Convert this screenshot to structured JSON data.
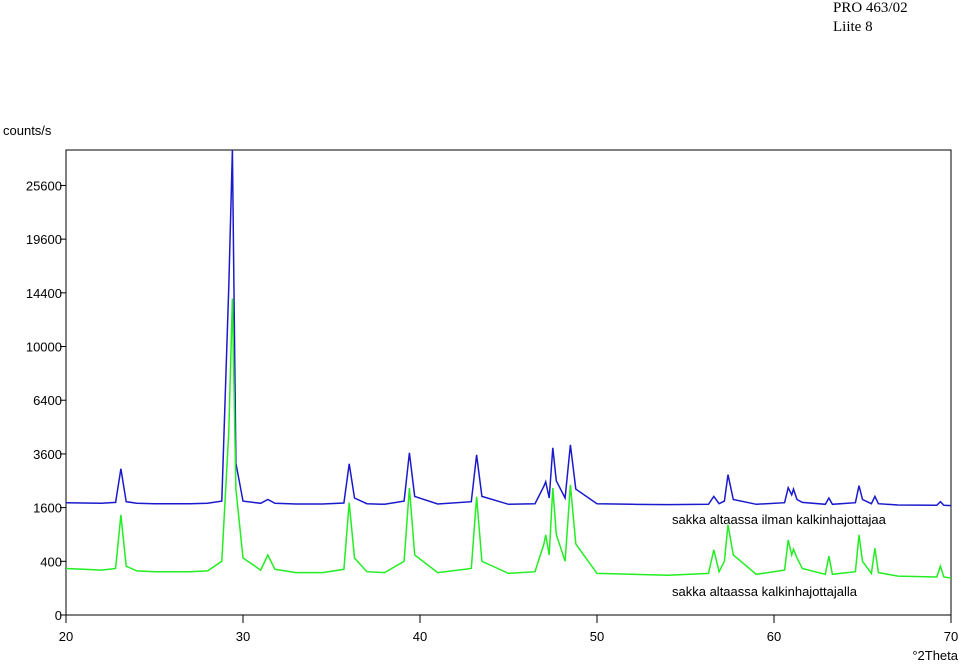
{
  "header": {
    "lines": [
      "PRO 463/02",
      "Liite 8"
    ]
  },
  "chart_data": {
    "type": "line",
    "ylabel": "counts/s",
    "xlabel": "°2Theta",
    "yscale": "sqrt",
    "xlim": [
      20,
      70
    ],
    "xticks": [
      20,
      30,
      40,
      50,
      60,
      70
    ],
    "ylim": [
      0,
      30000
    ],
    "yticks": [
      0,
      400,
      1600,
      3600,
      6400,
      10000,
      14400,
      19600,
      25600
    ],
    "x": [
      20,
      21,
      22,
      22.8,
      23.1,
      23.4,
      24,
      25,
      26,
      27,
      28,
      28.8,
      29.2,
      29.4,
      29.6,
      30,
      31,
      31.4,
      31.8,
      33,
      34.5,
      35.7,
      36.0,
      36.3,
      37,
      38,
      39.1,
      39.4,
      39.7,
      41,
      42.9,
      43.2,
      43.5,
      45,
      46.5,
      47.0,
      47.1,
      47.3,
      47.5,
      47.7,
      48.2,
      48.5,
      48.8,
      50,
      52,
      54,
      56.3,
      56.6,
      56.9,
      57.2,
      57.4,
      57.7,
      59,
      60.6,
      60.8,
      61.0,
      61.1,
      61.3,
      61.6,
      62.9,
      63.1,
      63.3,
      64.6,
      64.8,
      65.0,
      65.5,
      65.7,
      65.9,
      67,
      69.2,
      69.4,
      69.6,
      70
    ],
    "series": [
      {
        "name": "sakka altaassa ilman kalkinhajottajaa",
        "color": "#1a1acc",
        "values": [
          1750,
          1740,
          1730,
          1760,
          2970,
          1780,
          1730,
          1720,
          1720,
          1720,
          1730,
          1800,
          15000,
          30000,
          3200,
          1800,
          1730,
          1850,
          1730,
          1710,
          1710,
          1740,
          3170,
          1900,
          1720,
          1700,
          1800,
          3650,
          1950,
          1710,
          1780,
          3560,
          1950,
          1700,
          1720,
          2300,
          2460,
          1900,
          3880,
          2500,
          1900,
          4020,
          2200,
          1720,
          1700,
          1690,
          1700,
          1950,
          1720,
          1800,
          2730,
          1850,
          1700,
          1750,
          2250,
          2000,
          2200,
          1850,
          1760,
          1700,
          1900,
          1700,
          1750,
          2320,
          1850,
          1720,
          1950,
          1720,
          1680,
          1670,
          1780,
          1670,
          1660
        ]
      },
      {
        "name": "sakka altaassa kalkinhajottajalla",
        "color": "#22ee22",
        "values": [
          300,
          290,
          280,
          300,
          1390,
          330,
          270,
          260,
          260,
          260,
          270,
          400,
          4660,
          13900,
          2200,
          450,
          280,
          500,
          290,
          250,
          250,
          290,
          1750,
          450,
          260,
          250,
          400,
          2240,
          500,
          250,
          300,
          1940,
          400,
          240,
          260,
          700,
          890,
          500,
          2240,
          900,
          400,
          2350,
          700,
          240,
          230,
          220,
          240,
          590,
          260,
          400,
          1130,
          500,
          230,
          280,
          780,
          500,
          600,
          450,
          300,
          230,
          480,
          230,
          260,
          890,
          400,
          240,
          620,
          250,
          210,
          200,
          330,
          200,
          190
        ]
      }
    ]
  }
}
